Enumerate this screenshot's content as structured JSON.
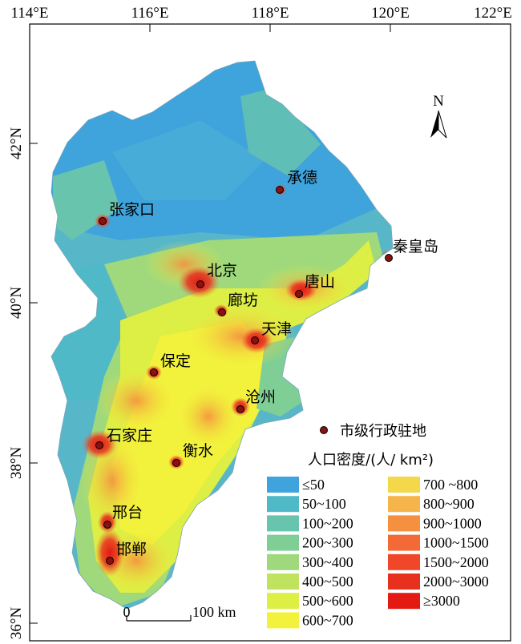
{
  "map": {
    "longitude_labels": [
      "114°E",
      "116°E",
      "118°E",
      "120°E",
      "122°E"
    ],
    "latitude_labels": [
      "42°N",
      "40°N",
      "38°N",
      "36°N"
    ],
    "north_label": "N",
    "scale_bar": {
      "start": "0",
      "end": "100 km"
    },
    "cities": [
      {
        "id": "chengde",
        "name": "承德"
      },
      {
        "id": "zhangjiakou",
        "name": "张家口"
      },
      {
        "id": "qinhuangdao",
        "name": "秦皇岛"
      },
      {
        "id": "beijing",
        "name": "北京"
      },
      {
        "id": "tangshan",
        "name": "唐山"
      },
      {
        "id": "langfang",
        "name": "廊坊"
      },
      {
        "id": "tianjin",
        "name": "天津"
      },
      {
        "id": "baoding",
        "name": "保定"
      },
      {
        "id": "cangzhou",
        "name": "沧州"
      },
      {
        "id": "shijiazhuang",
        "name": "石家庄"
      },
      {
        "id": "hengshui",
        "name": "衡水"
      },
      {
        "id": "xingtai",
        "name": "邢台"
      },
      {
        "id": "handan",
        "name": "邯郸"
      }
    ],
    "colors": {
      "background_low": "#3fa3dc",
      "mid_green": "#7ccf9a",
      "yellow": "#e6f03c",
      "orange": "#f59a45",
      "red": "#e8251c",
      "city_dot": "#8b1010"
    }
  },
  "legend": {
    "marker_label": "市级行政驻地",
    "title": "人口密度/(人/ km²)",
    "classes": [
      {
        "label": "≤50",
        "color": "#3fa4dc"
      },
      {
        "label": "50~100",
        "color": "#50b9c8"
      },
      {
        "label": "100~200",
        "color": "#68c4ad"
      },
      {
        "label": "200~300",
        "color": "#7fce96"
      },
      {
        "label": "300~400",
        "color": "#9fd97c"
      },
      {
        "label": "400~500",
        "color": "#bfe35f"
      },
      {
        "label": "500~600",
        "color": "#ddee44"
      },
      {
        "label": "600~700",
        "color": "#f2f23c"
      },
      {
        "label": "700 ~800",
        "color": "#f3d84a"
      },
      {
        "label": "800~900",
        "color": "#f6b54a"
      },
      {
        "label": "900~1000",
        "color": "#f59040"
      },
      {
        "label": "1000~1500",
        "color": "#f46a36"
      },
      {
        "label": "1500~2000",
        "color": "#f0472b"
      },
      {
        "label": "2000~3000",
        "color": "#e8301f"
      },
      {
        "label": "≥3000",
        "color": "#e41a12"
      }
    ]
  }
}
